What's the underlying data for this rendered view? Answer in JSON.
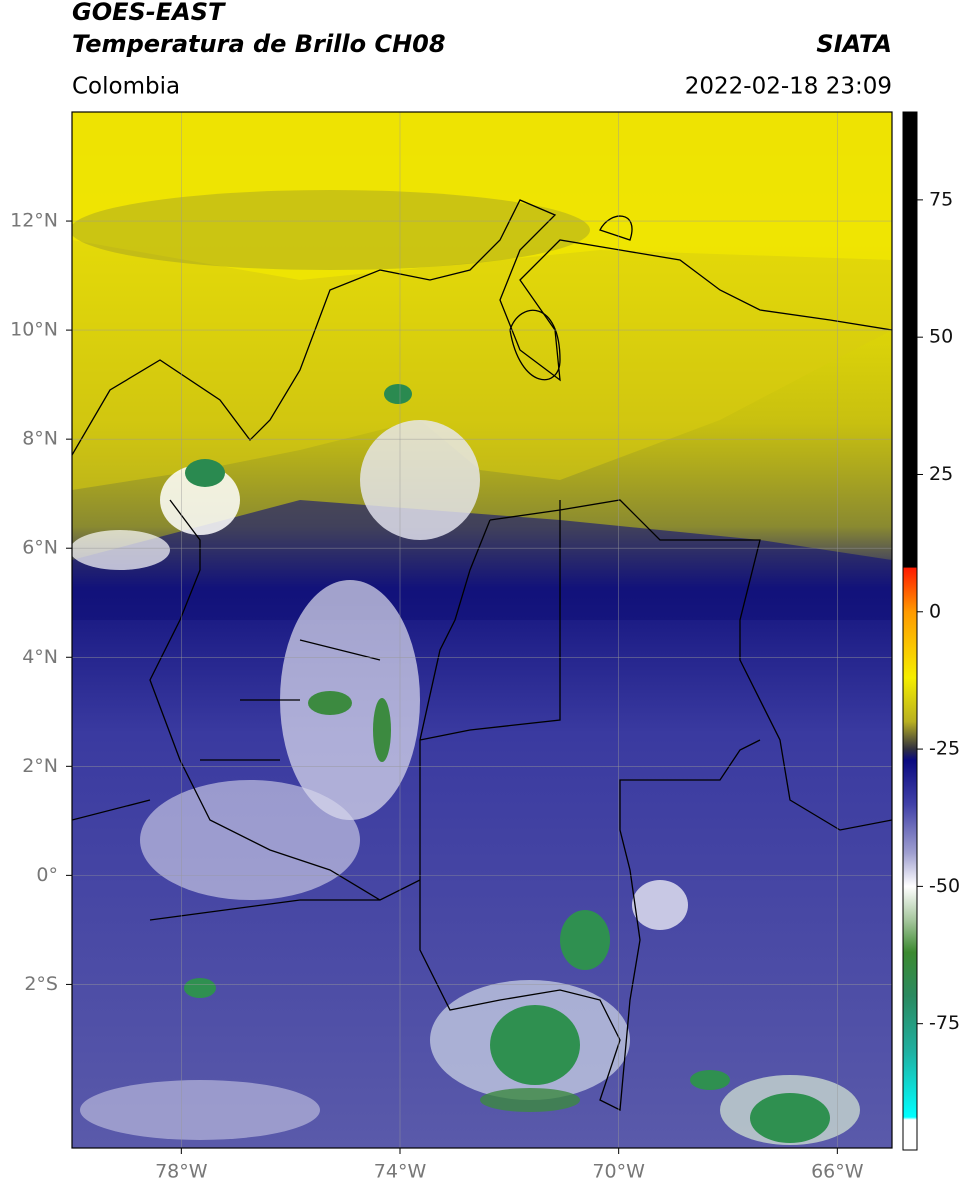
{
  "header": {
    "title": "GOES-EAST",
    "subtitle": "Temperatura de Brillo CH08",
    "region": "Colombia",
    "source": "SIATA",
    "datetime": "2022-02-18 23:09"
  },
  "map": {
    "xlim": [
      -80,
      -65
    ],
    "ylim": [
      -5,
      14
    ],
    "xticks": [
      {
        "value": -78,
        "label": "78°W"
      },
      {
        "value": -74,
        "label": "74°W"
      },
      {
        "value": -70,
        "label": "70°W"
      },
      {
        "value": -66,
        "label": "66°W"
      }
    ],
    "yticks": [
      {
        "value": 12,
        "label": "12°N"
      },
      {
        "value": 10,
        "label": "10°N"
      },
      {
        "value": 8,
        "label": "8°N"
      },
      {
        "value": 6,
        "label": "6°N"
      },
      {
        "value": 4,
        "label": "4°N"
      },
      {
        "value": 2,
        "label": "2°N"
      },
      {
        "value": 0,
        "label": "0°"
      },
      {
        "value": -2,
        "label": "2°S"
      }
    ],
    "grid": true
  },
  "colorbar": {
    "lim": [
      -98,
      91
    ],
    "ticks": [
      75,
      50,
      25,
      0,
      -25,
      -50,
      -75
    ],
    "colormap": [
      {
        "value": 91,
        "color": "#000000"
      },
      {
        "value": 8.1,
        "color": "#000000"
      },
      {
        "value": 8,
        "color": "#ff1a00"
      },
      {
        "value": 0,
        "color": "#ff9a00"
      },
      {
        "value": -12,
        "color": "#f5ee00"
      },
      {
        "value": -20,
        "color": "#b8b020"
      },
      {
        "value": -25,
        "color": "#303040"
      },
      {
        "value": -27,
        "color": "#0a0a80"
      },
      {
        "value": -35,
        "color": "#4040a8"
      },
      {
        "value": -44,
        "color": "#a0a0d0"
      },
      {
        "value": -50,
        "color": "#ffffff"
      },
      {
        "value": -56,
        "color": "#a8c8a0"
      },
      {
        "value": -62,
        "color": "#3c8a30"
      },
      {
        "value": -70,
        "color": "#2a8a60"
      },
      {
        "value": -80,
        "color": "#20b0a0"
      },
      {
        "value": -92,
        "color": "#00ffff"
      },
      {
        "value": -92.5,
        "color": "#ffffff"
      },
      {
        "value": -98,
        "color": "#ffffff"
      }
    ]
  }
}
